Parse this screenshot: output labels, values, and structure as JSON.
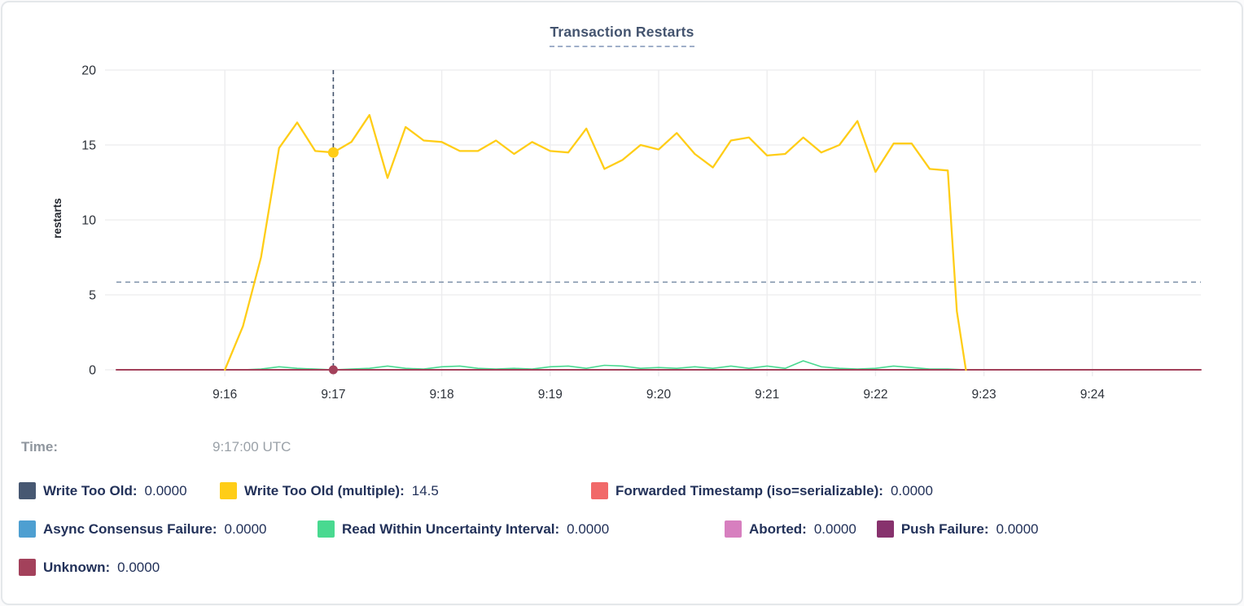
{
  "title": "Transaction Restarts",
  "time_row": {
    "label": "Time:",
    "value": "9:17:00 UTC"
  },
  "y_axis": {
    "label": "restarts",
    "ticks": [
      0,
      5,
      10,
      15,
      20
    ]
  },
  "x_axis": {
    "ticks": [
      {
        "t": 60,
        "label": "9:16"
      },
      {
        "t": 120,
        "label": "9:17"
      },
      {
        "t": 180,
        "label": "9:18"
      },
      {
        "t": 240,
        "label": "9:19"
      },
      {
        "t": 300,
        "label": "9:20"
      },
      {
        "t": 360,
        "label": "9:21"
      },
      {
        "t": 420,
        "label": "9:22"
      },
      {
        "t": 480,
        "label": "9:23"
      },
      {
        "t": 540,
        "label": "9:24"
      }
    ]
  },
  "legend": {
    "rows": [
      [
        {
          "label": "Write Too Old:",
          "value": "0.0000",
          "color": "#475872"
        },
        {
          "label": "Write Too Old (multiple):",
          "value": "14.5",
          "color": "#FFCD17"
        },
        {
          "label": "Forwarded Timestamp (iso=serializable):",
          "value": "0.0000",
          "color": "#F16969"
        }
      ],
      [
        {
          "label": "Async Consensus Failure:",
          "value": "0.0000",
          "color": "#4E9FD1"
        },
        {
          "label": "Read Within Uncertainty Interval:",
          "value": "0.0000",
          "color": "#49D990"
        },
        {
          "label": "Aborted:",
          "value": "0.0000",
          "color": "#D77FBF"
        },
        {
          "label": "Push Failure:",
          "value": "0.0000",
          "color": "#87326D"
        }
      ],
      [
        {
          "label": "Unknown:",
          "value": "0.0000",
          "color": "#A3415B"
        }
      ]
    ]
  },
  "chart_data": {
    "type": "line",
    "title": "Transaction Restarts",
    "ylabel": "restarts",
    "ylim": [
      0,
      20
    ],
    "grid": true,
    "legend_position": "bottom",
    "x_window": [
      "9:15:00",
      "9:25:00"
    ],
    "time_unit": "seconds after 9:15:00",
    "avg_line_value": 5.85,
    "hover": {
      "t": 120,
      "time": "9:17:00 UTC",
      "points": [
        {
          "series": "Write Too Old (multiple)",
          "value": 14.5,
          "color": "#FFCD17",
          "r": 6.5
        },
        {
          "series": "Unknown",
          "value": 0,
          "color": "#A3415B",
          "r": 5.5
        }
      ]
    },
    "series": [
      {
        "name": "Write Too Old",
        "color": "#475872",
        "width": 1.5,
        "t": [
          60,
          470
        ],
        "values": [
          0,
          0
        ]
      },
      {
        "name": "Write Too Old (multiple)",
        "color": "#FFCD17",
        "width": 2.3,
        "t": [
          60,
          70,
          80,
          90,
          100,
          110,
          120,
          130,
          140,
          150,
          160,
          170,
          180,
          190,
          200,
          210,
          220,
          230,
          240,
          250,
          260,
          270,
          280,
          290,
          300,
          310,
          320,
          330,
          340,
          350,
          360,
          370,
          380,
          390,
          400,
          410,
          420,
          430,
          440,
          450,
          460,
          465,
          470
        ],
        "values": [
          0,
          2.9,
          7.5,
          14.8,
          16.5,
          14.6,
          14.5,
          15.2,
          17,
          12.8,
          16.2,
          15.3,
          15.2,
          14.6,
          14.6,
          15.3,
          14.4,
          15.2,
          14.6,
          14.5,
          16.1,
          13.4,
          14,
          15,
          14.7,
          15.8,
          14.4,
          13.5,
          15.3,
          15.5,
          14.3,
          14.4,
          15.5,
          14.5,
          15,
          16.6,
          13.2,
          15.1,
          15.1,
          13.4,
          13.3,
          3.9,
          0
        ]
      },
      {
        "name": "Forwarded Timestamp (iso=serializable)",
        "color": "#F16969",
        "width": 1.5,
        "t": [
          60,
          470
        ],
        "values": [
          0,
          0
        ]
      },
      {
        "name": "Async Consensus Failure",
        "color": "#4E9FD1",
        "width": 1.5,
        "t": [
          60,
          470
        ],
        "values": [
          0,
          0
        ]
      },
      {
        "name": "Read Within Uncertainty Interval",
        "color": "#49D990",
        "width": 1.6,
        "t": [
          60,
          70,
          80,
          90,
          100,
          110,
          120,
          130,
          140,
          150,
          160,
          170,
          180,
          190,
          200,
          210,
          220,
          230,
          240,
          250,
          260,
          270,
          280,
          290,
          300,
          310,
          320,
          330,
          340,
          350,
          360,
          370,
          380,
          390,
          400,
          410,
          420,
          430,
          440,
          450,
          460,
          465,
          470
        ],
        "values": [
          0,
          0,
          0.05,
          0.2,
          0.1,
          0.05,
          0,
          0.05,
          0.1,
          0.25,
          0.1,
          0.05,
          0.2,
          0.25,
          0.1,
          0.05,
          0.1,
          0.05,
          0.2,
          0.25,
          0.1,
          0.3,
          0.25,
          0.1,
          0.15,
          0.1,
          0.2,
          0.1,
          0.25,
          0.1,
          0.25,
          0.1,
          0.6,
          0.2,
          0.1,
          0.05,
          0.1,
          0.25,
          0.15,
          0.05,
          0.05,
          0.02,
          0
        ]
      },
      {
        "name": "Aborted",
        "color": "#D77FBF",
        "width": 1.5,
        "t": [
          60,
          470
        ],
        "values": [
          0,
          0
        ]
      },
      {
        "name": "Push Failure",
        "color": "#87326D",
        "width": 1.5,
        "t": [
          60,
          470
        ],
        "values": [
          0,
          0
        ]
      },
      {
        "name": "Unknown",
        "color": "#A3415B",
        "width": 2,
        "t": [
          0,
          600
        ],
        "values": [
          0,
          0
        ]
      }
    ]
  }
}
